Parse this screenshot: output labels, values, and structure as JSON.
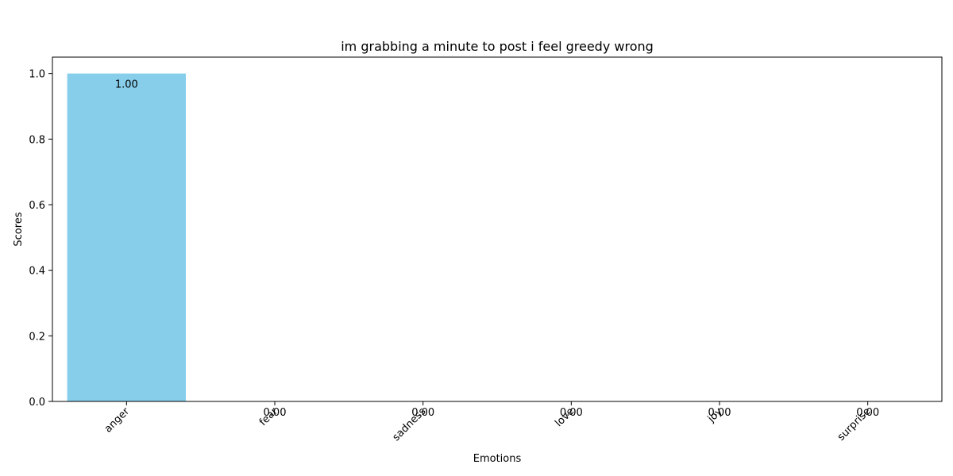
{
  "chart_data": {
    "type": "bar",
    "title": "im grabbing a minute to post i feel greedy wrong",
    "xlabel": "Emotions",
    "ylabel": "Scores",
    "categories": [
      "anger",
      "fear",
      "sadness",
      "love",
      "joy",
      "surprise"
    ],
    "values": [
      1.0,
      0.0,
      0.0,
      0.0,
      0.0,
      0.0
    ],
    "data_labels": [
      "1.00",
      "0.00",
      "0.00",
      "0.00",
      "0.00",
      "0.00"
    ],
    "ylim": [
      0,
      1.05
    ],
    "yticks": [
      0.0,
      0.2,
      0.4,
      0.6,
      0.8,
      1.0
    ],
    "ytick_labels": [
      "0.0",
      "0.2",
      "0.4",
      "0.6",
      "0.8",
      "1.0"
    ],
    "bar_color": "#87ceeb",
    "grid": false,
    "legend": "none"
  }
}
